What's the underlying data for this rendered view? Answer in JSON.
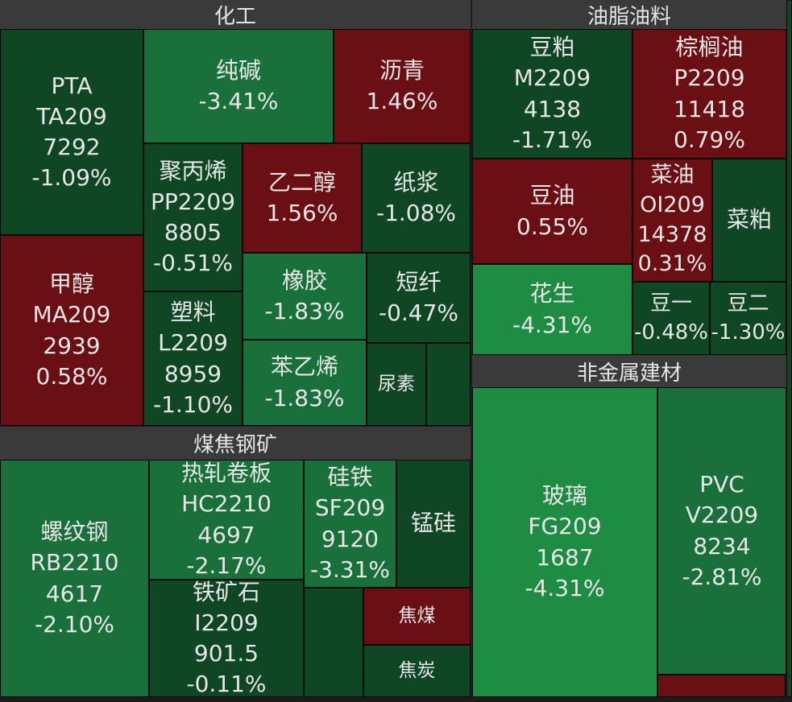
{
  "sections": [
    {
      "title": "化工",
      "tiles": [
        {
          "lines": [
            "PTA",
            "TA209",
            "7292",
            "-1.09%"
          ]
        },
        {
          "lines": [
            "纯碱",
            "-3.41%"
          ]
        },
        {
          "lines": [
            "沥青",
            "1.46%"
          ]
        },
        {
          "lines": [
            "聚丙烯",
            "PP2209",
            "8805",
            "-0.51%"
          ]
        },
        {
          "lines": [
            "乙二醇",
            "1.56%"
          ]
        },
        {
          "lines": [
            "纸浆",
            "-1.08%"
          ]
        },
        {
          "lines": [
            "甲醇",
            "MA209",
            "2939",
            "0.58%"
          ]
        },
        {
          "lines": [
            "塑料",
            "L2209",
            "8959",
            "-1.10%"
          ]
        },
        {
          "lines": [
            "橡胶",
            "-1.83%"
          ]
        },
        {
          "lines": [
            "短纤",
            "-0.47%"
          ]
        },
        {
          "lines": [
            "苯乙烯",
            "-1.83%"
          ]
        },
        {
          "lines": [
            "尿素"
          ]
        }
      ]
    },
    {
      "title": "煤焦钢矿",
      "tiles": [
        {
          "lines": [
            "螺纹钢",
            "RB2210",
            "4617",
            "-2.10%"
          ]
        },
        {
          "lines": [
            "热轧卷板",
            "HC2210",
            "4697",
            "-2.17%"
          ]
        },
        {
          "lines": [
            "铁矿石",
            "I2209",
            "901.5",
            "-0.11%"
          ]
        },
        {
          "lines": [
            "硅铁",
            "SF209",
            "9120",
            "-3.31%"
          ]
        },
        {
          "lines": [
            "锰硅"
          ]
        },
        {
          "lines": [
            "焦煤"
          ]
        },
        {
          "lines": [
            "焦炭"
          ]
        }
      ]
    },
    {
      "title": "油脂油料",
      "tiles": [
        {
          "lines": [
            "豆粕",
            "M2209",
            "4138",
            "-1.71%"
          ]
        },
        {
          "lines": [
            "棕榈油",
            "P2209",
            "11418",
            "0.79%"
          ]
        },
        {
          "lines": [
            "豆油",
            "0.55%"
          ]
        },
        {
          "lines": [
            "菜油",
            "OI209",
            "14378",
            "0.31%"
          ]
        },
        {
          "lines": [
            "菜粕"
          ]
        },
        {
          "lines": [
            "花生",
            "-4.31%"
          ]
        },
        {
          "lines": [
            "豆一",
            "-0.48%"
          ]
        },
        {
          "lines": [
            "豆二",
            "-1.30%"
          ]
        }
      ]
    },
    {
      "title": "非金属建材",
      "tiles": [
        {
          "lines": [
            "玻璃",
            "FG209",
            "1687",
            "-4.31%"
          ]
        },
        {
          "lines": [
            "PVC",
            "V2209",
            "8234",
            "-2.81%"
          ]
        }
      ]
    }
  ]
}
